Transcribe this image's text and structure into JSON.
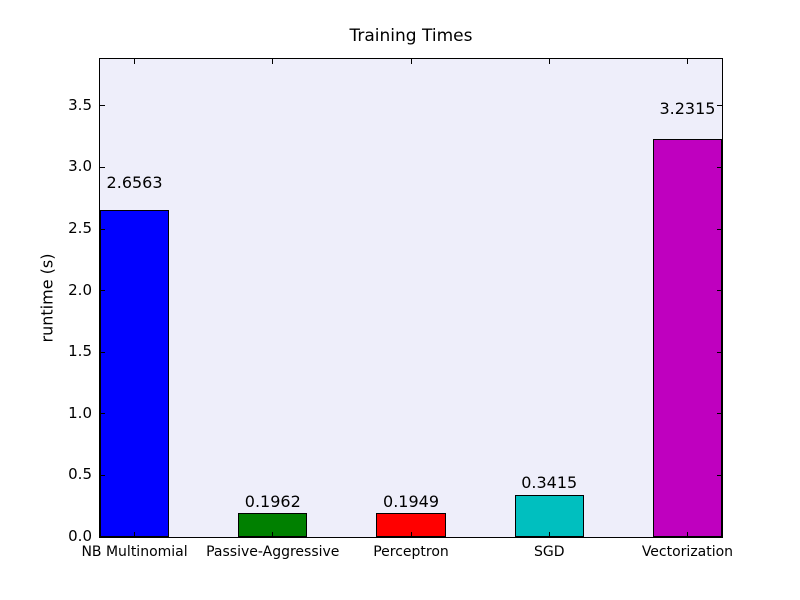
{
  "figure": {
    "background": "#ffffff"
  },
  "chart_data": {
    "type": "bar",
    "title": "Training Times",
    "xlabel": "",
    "ylabel": "runtime (s)",
    "categories": [
      "NB Multinomial",
      "Passive-Aggressive",
      "Perceptron",
      "SGD",
      "Vectorization"
    ],
    "values": [
      2.6563,
      0.1962,
      0.1949,
      0.3415,
      3.2315
    ],
    "value_labels": [
      "2.6563",
      "0.1962",
      "0.1949",
      "0.3415",
      "3.2315"
    ],
    "bar_colors": [
      "#0000ff",
      "#008000",
      "#ff0000",
      "#00bfbf",
      "#bf00bf"
    ],
    "bar_edge_color": "#000000",
    "plot_background": "#eeeefa",
    "ytick_labels": [
      "0.0",
      "0.5",
      "1.0",
      "1.5",
      "2.0",
      "2.5",
      "3.0",
      "3.5"
    ],
    "yticks": [
      0.0,
      0.5,
      1.0,
      1.5,
      2.0,
      2.5,
      3.0,
      3.5
    ],
    "ylim": [
      0,
      3.88
    ],
    "xlim": [
      0,
      4.5
    ],
    "bar_width_units": 0.5,
    "grid": false,
    "legend": "none",
    "tick_direction": "in"
  }
}
